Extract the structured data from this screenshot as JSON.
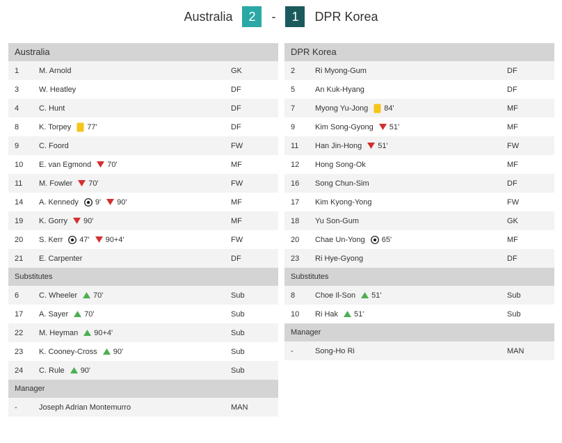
{
  "header": {
    "home_team": "Australia",
    "home_score": "2",
    "separator": "-",
    "away_score": "1",
    "away_team": "DPR Korea"
  },
  "colors": {
    "home_score_bg": "#2aa8a5",
    "away_score_bg": "#1b5a5c",
    "sub_in": "#4caf50",
    "sub_out": "#d32f2f",
    "yellow": "#f5c518"
  },
  "home": {
    "team_label": "Australia",
    "starters": [
      {
        "num": "1",
        "name": "M. Arnold",
        "pos": "GK",
        "events": []
      },
      {
        "num": "3",
        "name": "W. Heatley",
        "pos": "DF",
        "events": []
      },
      {
        "num": "4",
        "name": "C. Hunt",
        "pos": "DF",
        "events": []
      },
      {
        "num": "8",
        "name": "K. Torpey",
        "pos": "DF",
        "events": [
          {
            "icon": "yellow-card-icon",
            "time": "77'"
          }
        ]
      },
      {
        "num": "9",
        "name": "C. Foord",
        "pos": "FW",
        "events": []
      },
      {
        "num": "10",
        "name": "E. van Egmond",
        "pos": "MF",
        "events": [
          {
            "icon": "sub-out-icon",
            "time": "70'"
          }
        ]
      },
      {
        "num": "11",
        "name": "M. Fowler",
        "pos": "FW",
        "events": [
          {
            "icon": "sub-out-icon",
            "time": "70'"
          }
        ]
      },
      {
        "num": "14",
        "name": "A. Kennedy",
        "pos": "MF",
        "events": [
          {
            "icon": "goal-icon",
            "time": "9'"
          },
          {
            "icon": "sub-out-icon",
            "time": "90'"
          }
        ]
      },
      {
        "num": "19",
        "name": "K. Gorry",
        "pos": "MF",
        "events": [
          {
            "icon": "sub-out-icon",
            "time": "90'"
          }
        ]
      },
      {
        "num": "20",
        "name": "S. Kerr",
        "pos": "FW",
        "events": [
          {
            "icon": "goal-icon",
            "time": "47'"
          },
          {
            "icon": "sub-out-icon",
            "time": "90+4'"
          }
        ]
      },
      {
        "num": "21",
        "name": "E. Carpenter",
        "pos": "DF",
        "events": []
      }
    ],
    "subs_label": "Substitutes",
    "subs": [
      {
        "num": "6",
        "name": "C. Wheeler",
        "pos": "Sub",
        "events": [
          {
            "icon": "sub-in-icon",
            "time": "70'"
          }
        ]
      },
      {
        "num": "17",
        "name": "A. Sayer",
        "pos": "Sub",
        "events": [
          {
            "icon": "sub-in-icon",
            "time": "70'"
          }
        ]
      },
      {
        "num": "22",
        "name": "M. Heyman",
        "pos": "Sub",
        "events": [
          {
            "icon": "sub-in-icon",
            "time": "90+4'"
          }
        ]
      },
      {
        "num": "23",
        "name": "K. Cooney-Cross",
        "pos": "Sub",
        "events": [
          {
            "icon": "sub-in-icon",
            "time": "90'"
          }
        ]
      },
      {
        "num": "24",
        "name": "C. Rule",
        "pos": "Sub",
        "events": [
          {
            "icon": "sub-in-icon",
            "time": "90'"
          }
        ]
      }
    ],
    "manager_label": "Manager",
    "manager": [
      {
        "num": "-",
        "name": "Joseph Adrian Montemurro",
        "pos": "MAN",
        "events": []
      }
    ]
  },
  "away": {
    "team_label": "DPR Korea",
    "starters": [
      {
        "num": "2",
        "name": "Ri Myong-Gum",
        "pos": "DF",
        "events": []
      },
      {
        "num": "5",
        "name": "An Kuk-Hyang",
        "pos": "DF",
        "events": []
      },
      {
        "num": "7",
        "name": "Myong Yu-Jong",
        "pos": "MF",
        "events": [
          {
            "icon": "yellow-card-icon",
            "time": "84'"
          }
        ]
      },
      {
        "num": "9",
        "name": "Kim Song-Gyong",
        "pos": "MF",
        "events": [
          {
            "icon": "sub-out-icon",
            "time": "51'"
          }
        ]
      },
      {
        "num": "11",
        "name": "Han Jin-Hong",
        "pos": "FW",
        "events": [
          {
            "icon": "sub-out-icon",
            "time": "51'"
          }
        ]
      },
      {
        "num": "12",
        "name": "Hong Song-Ok",
        "pos": "MF",
        "events": []
      },
      {
        "num": "16",
        "name": "Song Chun-Sim",
        "pos": "DF",
        "events": []
      },
      {
        "num": "17",
        "name": "Kim Kyong-Yong",
        "pos": "FW",
        "events": []
      },
      {
        "num": "18",
        "name": "Yu Son-Gum",
        "pos": "GK",
        "events": []
      },
      {
        "num": "20",
        "name": "Chae Un-Yong",
        "pos": "MF",
        "events": [
          {
            "icon": "goal-icon",
            "time": "65'"
          }
        ]
      },
      {
        "num": "23",
        "name": "Ri Hye-Gyong",
        "pos": "DF",
        "events": []
      }
    ],
    "subs_label": "Substitutes",
    "subs": [
      {
        "num": "8",
        "name": "Choe Il-Son",
        "pos": "Sub",
        "events": [
          {
            "icon": "sub-in-icon",
            "time": "51'"
          }
        ]
      },
      {
        "num": "10",
        "name": "Ri Hak",
        "pos": "Sub",
        "events": [
          {
            "icon": "sub-in-icon",
            "time": "51'"
          }
        ]
      }
    ],
    "manager_label": "Manager",
    "manager": [
      {
        "num": "-",
        "name": "Song-Ho Ri",
        "pos": "MAN",
        "events": []
      }
    ]
  }
}
